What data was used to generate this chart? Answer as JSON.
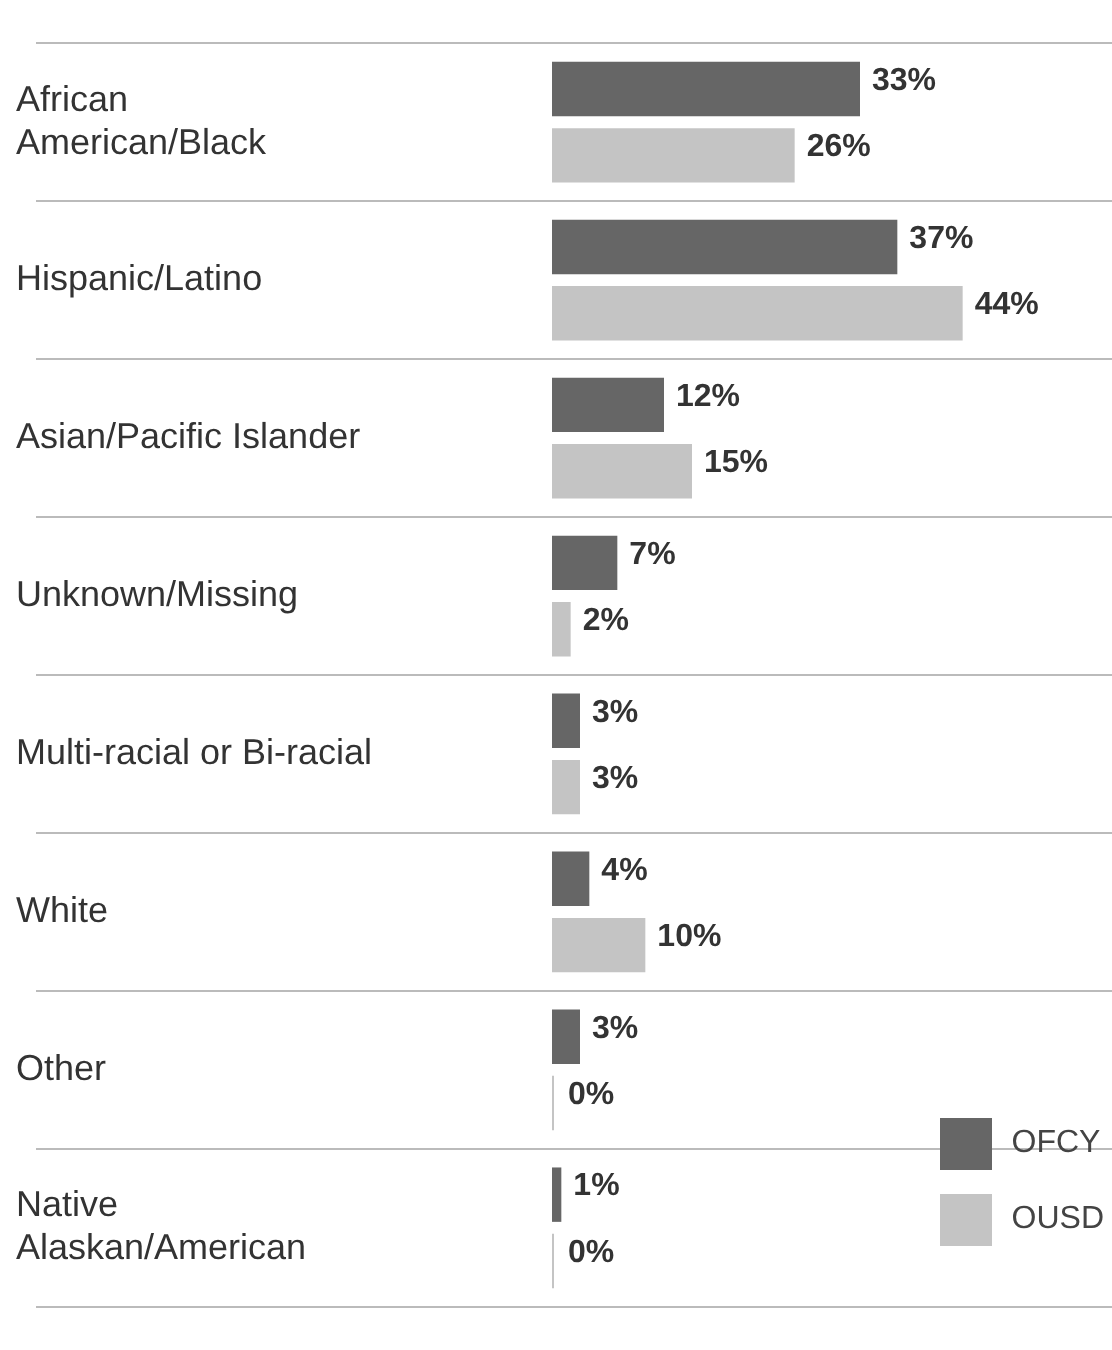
{
  "chart_data": {
    "type": "bar",
    "orientation": "horizontal",
    "categories": [
      "African\nAmerican/Black",
      "Hispanic/Latino",
      "Asian/Pacific Islander",
      "Unknown/Missing",
      "Multi-racial or Bi-racial",
      "White",
      "Other",
      "Native\nAlaskan/American"
    ],
    "series": [
      {
        "name": "OFCY",
        "color": "#666666",
        "values": [
          33,
          37,
          12,
          7,
          3,
          4,
          3,
          1
        ],
        "value_labels": [
          "33%",
          "37%",
          "12%",
          "7%",
          "3%",
          "4%",
          "3%",
          "1%"
        ]
      },
      {
        "name": "OUSD",
        "color": "#c4c4c4",
        "values": [
          26,
          44,
          15,
          2,
          3,
          10,
          0,
          0
        ],
        "value_labels": [
          "26%",
          "44%",
          "15%",
          "2%",
          "3%",
          "10%",
          "0%",
          "0%"
        ]
      }
    ],
    "grid": "y",
    "legend": "bottom right",
    "tick_labels": "y"
  }
}
